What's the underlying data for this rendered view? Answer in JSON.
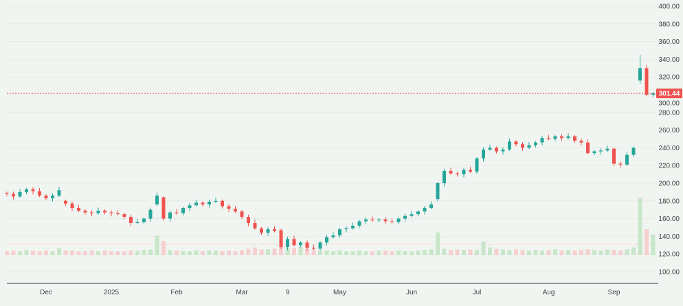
{
  "chart_data": {
    "type": "candlestick",
    "title": "",
    "y_axis": {
      "ticks": [
        "400.00",
        "380.00",
        "360.00",
        "340.00",
        "320.00",
        "300.00",
        "280.00",
        "260.00",
        "240.00",
        "220.00",
        "200.00",
        "180.00",
        "160.00",
        "140.00",
        "120.00",
        "100.00"
      ],
      "range": [
        100,
        400
      ],
      "position": "right"
    },
    "x_axis": {
      "ticks": [
        "Dec",
        "2025",
        "Feb",
        "Mar",
        "9",
        "May",
        "Jun",
        "Jul",
        "Aug",
        "Sep"
      ],
      "tick_index": [
        6,
        16,
        26,
        36,
        43,
        51,
        62,
        72,
        83,
        93
      ]
    },
    "last_price": {
      "value": 301.44,
      "label": "301.44",
      "color": "#ef5350"
    },
    "colors": {
      "up": "#26a69a",
      "down": "#ef5350",
      "up_volume": "#c8e6c9",
      "down_volume": "#f6cfcf",
      "background": "#f1f5f1"
    },
    "close": [
      188,
      185,
      190,
      193,
      191,
      186,
      183,
      186,
      192,
      177,
      172,
      169,
      167,
      166,
      169,
      167,
      166,
      165,
      162,
      155,
      156,
      160,
      170,
      186,
      160,
      167,
      166,
      172,
      175,
      178,
      176,
      179,
      180,
      174,
      171,
      168,
      162,
      155,
      149,
      144,
      148,
      146,
      128,
      137,
      130,
      133,
      127,
      126,
      133,
      139,
      141,
      148,
      149,
      152,
      157,
      159,
      158,
      159,
      157,
      156,
      160,
      163,
      165,
      168,
      172,
      176,
      200,
      214,
      211,
      210,
      215,
      213,
      228,
      238,
      240,
      236,
      238,
      247,
      244,
      240,
      243,
      246,
      251,
      250,
      253,
      251,
      253,
      248,
      246,
      234,
      236,
      237,
      239,
      222,
      221,
      232,
      240,
      330,
      300,
      301.44
    ],
    "open_overrides": {
      "9": 180,
      "23": 176,
      "24": 184,
      "42": 147,
      "66": 182,
      "97": 316
    },
    "volume": [
      6,
      7,
      6,
      8,
      7,
      6,
      7,
      6,
      11,
      7,
      7,
      6,
      6,
      7,
      6,
      7,
      6,
      6,
      6,
      7,
      7,
      8,
      9,
      30,
      22,
      8,
      7,
      6,
      6,
      7,
      6,
      7,
      7,
      6,
      7,
      6,
      8,
      10,
      12,
      9,
      9,
      10,
      14,
      12,
      11,
      13,
      10,
      8,
      7,
      7,
      6,
      7,
      6,
      6,
      7,
      6,
      6,
      7,
      7,
      6,
      7,
      6,
      6,
      7,
      8,
      9,
      35,
      10,
      8,
      9,
      8,
      9,
      8,
      21,
      12,
      10,
      9,
      8,
      9,
      8,
      7,
      8,
      7,
      8,
      9,
      7,
      8,
      7,
      8,
      9,
      8,
      7,
      9,
      8,
      7,
      9,
      12,
      88,
      40,
      32
    ]
  }
}
